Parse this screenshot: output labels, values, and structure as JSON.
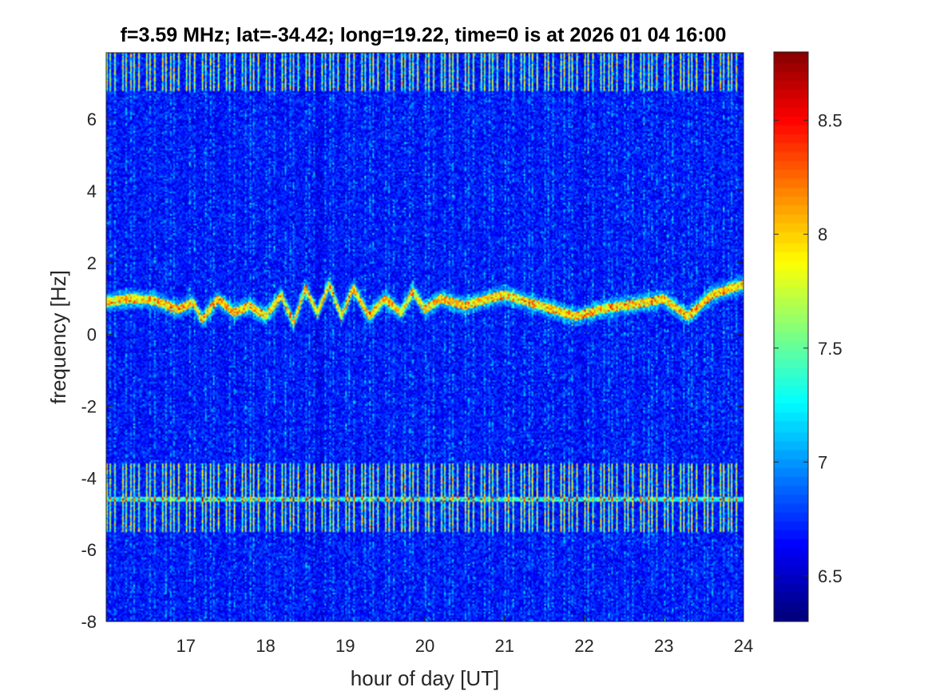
{
  "chart_data": {
    "type": "heatmap",
    "title": "f=3.59 MHz;  lat=-34.42; long=19.22, time=0 is at 2026 01 04 16:00",
    "xlabel": "hour of day [UT]",
    "ylabel": "frequency [Hz]",
    "xlim": [
      16.0,
      24.0
    ],
    "ylim": [
      -8.0,
      7.85
    ],
    "x_ticks": [
      17,
      18,
      19,
      20,
      21,
      22,
      23,
      24
    ],
    "x_tick_labels": [
      "17",
      "18",
      "19",
      "20",
      "21",
      "22",
      "23",
      "24"
    ],
    "y_ticks": [
      -8,
      -6,
      -4,
      -2,
      0,
      2,
      4,
      6
    ],
    "y_tick_labels": [
      "-8",
      "-6",
      "-4",
      "-2",
      "0",
      "2",
      "4",
      "6"
    ],
    "colormap": "jet",
    "clim": [
      6.3,
      8.8
    ],
    "colorbar_ticks": [
      6.5,
      7,
      7.5,
      8,
      8.5
    ],
    "colorbar_tick_labels": [
      "6.5",
      "7",
      "7.5",
      "8",
      "8.5"
    ],
    "colorbar_location": "right",
    "background_level": 6.65,
    "features": {
      "doppler_trace": {
        "description": "main oscillating Doppler trace",
        "points": [
          [
            16.0,
            0.9
          ],
          [
            16.3,
            1.0
          ],
          [
            16.6,
            0.95
          ],
          [
            16.9,
            0.7
          ],
          [
            17.1,
            0.9
          ],
          [
            17.2,
            0.4
          ],
          [
            17.4,
            1.0
          ],
          [
            17.6,
            0.6
          ],
          [
            17.8,
            0.8
          ],
          [
            18.0,
            0.5
          ],
          [
            18.2,
            1.1
          ],
          [
            18.35,
            0.3
          ],
          [
            18.5,
            1.3
          ],
          [
            18.65,
            0.6
          ],
          [
            18.8,
            1.4
          ],
          [
            18.95,
            0.5
          ],
          [
            19.1,
            1.3
          ],
          [
            19.3,
            0.5
          ],
          [
            19.5,
            1.0
          ],
          [
            19.7,
            0.6
          ],
          [
            19.85,
            1.2
          ],
          [
            20.0,
            0.7
          ],
          [
            20.2,
            1.0
          ],
          [
            20.5,
            0.8
          ],
          [
            20.8,
            1.0
          ],
          [
            21.0,
            1.1
          ],
          [
            21.3,
            0.9
          ],
          [
            21.6,
            0.7
          ],
          [
            21.9,
            0.5
          ],
          [
            22.2,
            0.7
          ],
          [
            22.5,
            0.8
          ],
          [
            22.8,
            0.9
          ],
          [
            23.0,
            1.0
          ],
          [
            23.3,
            0.5
          ],
          [
            23.6,
            1.1
          ],
          [
            24.0,
            1.4
          ]
        ]
      },
      "interference_bands": [
        {
          "y_min": -5.5,
          "y_max": -3.6,
          "x_min": 16.0,
          "x_max": 24.0
        },
        {
          "y_min": 6.8,
          "y_max": 7.85,
          "x_min": 16.0,
          "x_max": 24.0
        }
      ],
      "interference_line": {
        "y": -4.6,
        "x_min": 16.0,
        "x_max": 24.0
      },
      "vertical_interference_stripes": {
        "period_hours": 0.05,
        "x_min": 16.0,
        "x_max": 24.0
      }
    }
  }
}
